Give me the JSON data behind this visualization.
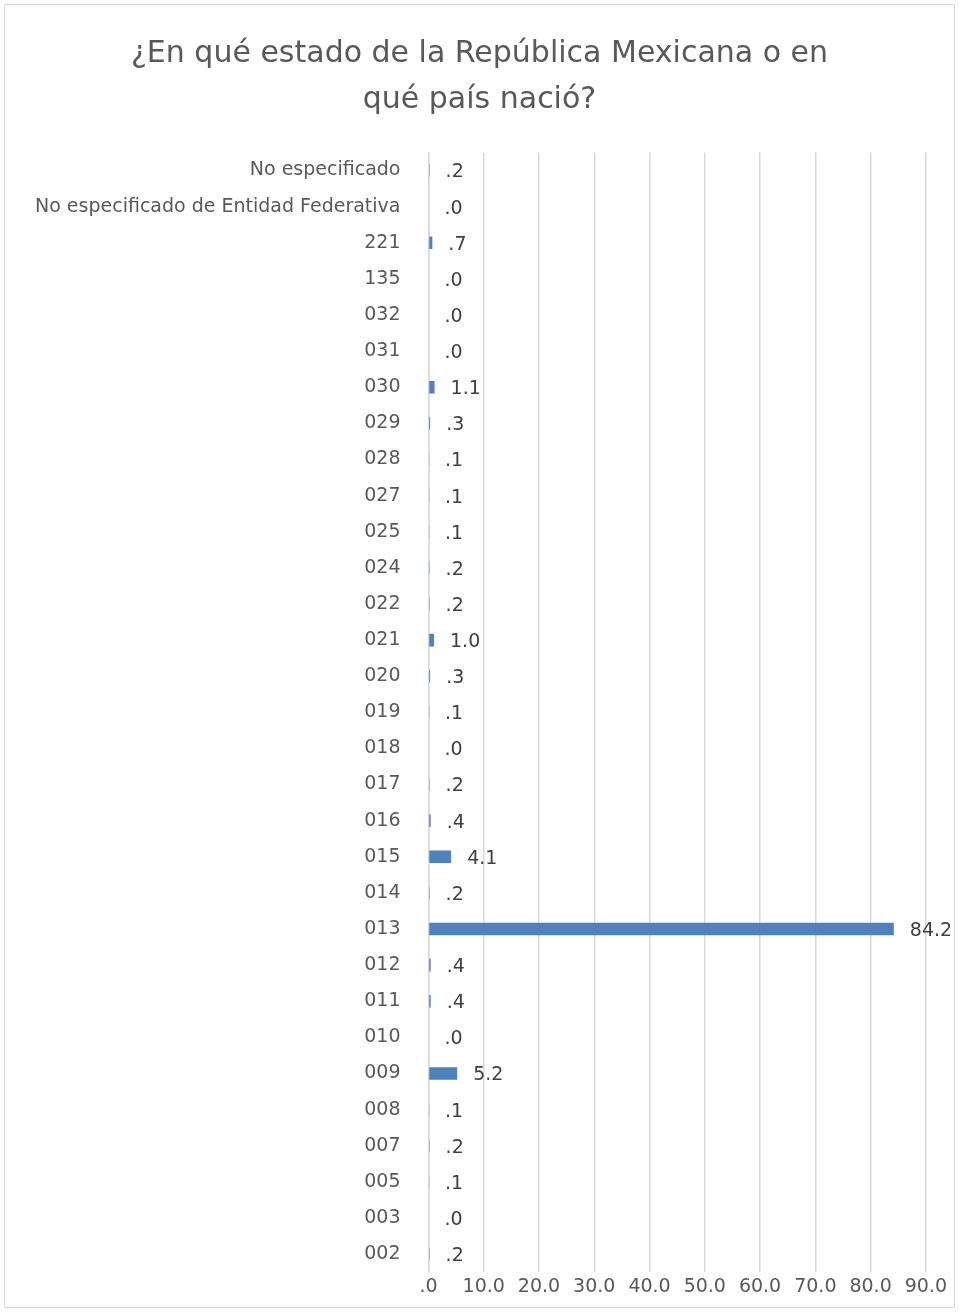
{
  "chart_data": {
    "type": "bar",
    "orientation": "horizontal",
    "title": "¿En qué estado de la República Mexicana o en qué país nació?",
    "categories": [
      "No especificado",
      "No especificado de Entidad Federativa",
      "221",
      "135",
      "032",
      "031",
      "030",
      "029",
      "028",
      "027",
      "025",
      "024",
      "022",
      "021",
      "020",
      "019",
      "018",
      "017",
      "016",
      "015",
      "014",
      "013",
      "012",
      "011",
      "010",
      "009",
      "008",
      "007",
      "005",
      "003",
      "002"
    ],
    "values": [
      0.2,
      0.0,
      0.7,
      0.0,
      0.0,
      0.0,
      1.1,
      0.3,
      0.1,
      0.1,
      0.1,
      0.2,
      0.2,
      1.0,
      0.3,
      0.1,
      0.0,
      0.2,
      0.4,
      4.1,
      0.2,
      84.2,
      0.4,
      0.4,
      0.0,
      5.2,
      0.1,
      0.2,
      0.1,
      0.0,
      0.2
    ],
    "value_labels": [
      ".2",
      ".0",
      ".7",
      ".0",
      ".0",
      ".0",
      "1.1",
      ".3",
      ".1",
      ".1",
      ".1",
      ".2",
      ".2",
      "1.0",
      ".3",
      ".1",
      ".0",
      ".2",
      ".4",
      "4.1",
      ".2",
      "84.2",
      ".4",
      ".4",
      ".0",
      "5.2",
      ".1",
      ".2",
      ".1",
      ".0",
      ".2"
    ],
    "color": "#4f81bd",
    "xlim": [
      0,
      90
    ],
    "xticks": [
      {
        "value": 0,
        "label": ".0"
      },
      {
        "value": 10,
        "label": "10.0"
      },
      {
        "value": 20,
        "label": "20.0"
      },
      {
        "value": 30,
        "label": "30.0"
      },
      {
        "value": 40,
        "label": "40.0"
      },
      {
        "value": 50,
        "label": "50.0"
      },
      {
        "value": 60,
        "label": "60.0"
      },
      {
        "value": 70,
        "label": "70.0"
      },
      {
        "value": 80,
        "label": "80.0"
      },
      {
        "value": 90,
        "label": "90.0"
      }
    ],
    "grid": "x",
    "legend": false
  }
}
